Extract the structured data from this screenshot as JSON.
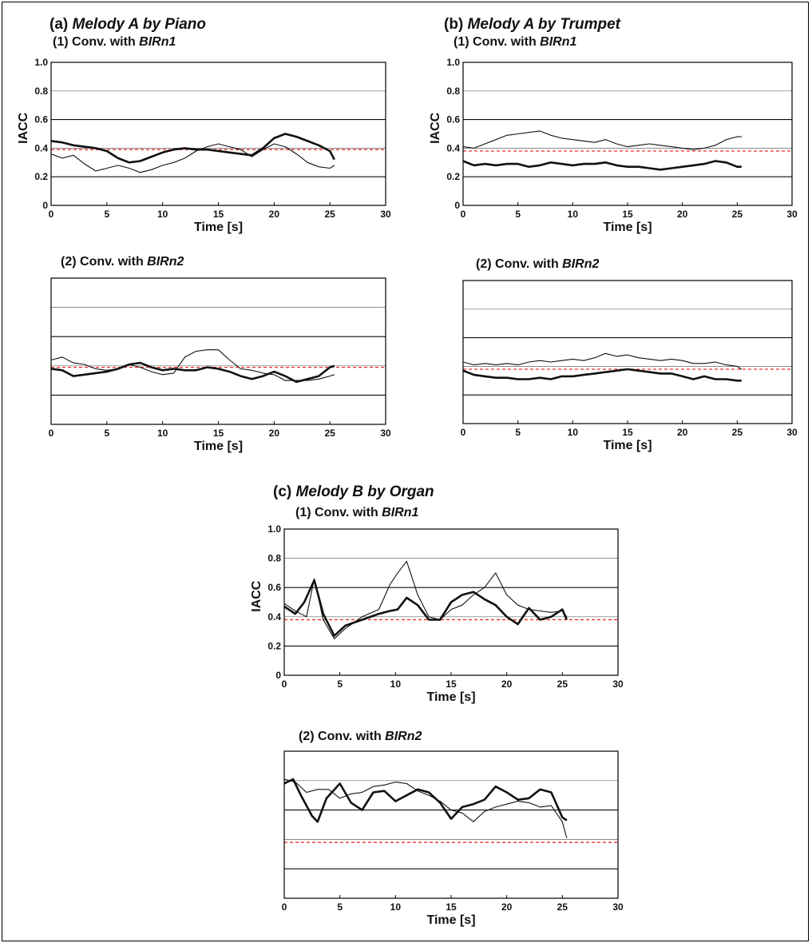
{
  "groups": [
    {
      "label": "(a)",
      "title": "Melody A by Piano"
    },
    {
      "label": "(b)",
      "title": "Melody A by Trumpet"
    },
    {
      "label": "(c)",
      "title": "Melody B by Organ"
    }
  ],
  "conv_prefix": "Conv. with",
  "colors": {
    "axes": "#000000",
    "grid": "#000000",
    "reference": "#e8302a",
    "series": "#111111"
  },
  "chart_data": [
    {
      "id": "a1",
      "group": "(a)",
      "panel_label": "(1)",
      "conv_label": "BIRn1",
      "type": "line",
      "xlabel": "Time [s]",
      "ylabel": "IACC",
      "xlim": [
        0,
        30
      ],
      "ylim": [
        0,
        1.0
      ],
      "xticks": [
        0,
        5,
        10,
        15,
        20,
        25,
        30
      ],
      "yticks": [
        0,
        0.2,
        0.4,
        0.6,
        0.8,
        1.0
      ],
      "show_x_ticklabels": true,
      "show_y_ticklabels": true,
      "grid": true,
      "reference_line": 0.39,
      "series": [
        {
          "style": "thick",
          "x": [
            0,
            1,
            2,
            3,
            4,
            5,
            6,
            7,
            8,
            9,
            10,
            11,
            12,
            13,
            14,
            15,
            16,
            17,
            18,
            19,
            20,
            21,
            22,
            23,
            24,
            25,
            25.4
          ],
          "y": [
            0.45,
            0.44,
            0.42,
            0.41,
            0.4,
            0.38,
            0.33,
            0.3,
            0.31,
            0.34,
            0.37,
            0.39,
            0.4,
            0.39,
            0.39,
            0.38,
            0.37,
            0.36,
            0.35,
            0.4,
            0.47,
            0.5,
            0.48,
            0.45,
            0.42,
            0.38,
            0.32
          ]
        },
        {
          "style": "thin",
          "x": [
            0,
            1,
            2,
            3,
            4,
            5,
            6,
            7,
            8,
            9,
            10,
            11,
            12,
            13,
            14,
            15,
            16,
            17,
            18,
            19,
            20,
            21,
            22,
            23,
            24,
            25,
            25.4
          ],
          "y": [
            0.36,
            0.33,
            0.35,
            0.29,
            0.24,
            0.26,
            0.28,
            0.26,
            0.23,
            0.25,
            0.28,
            0.3,
            0.33,
            0.38,
            0.41,
            0.43,
            0.41,
            0.39,
            0.34,
            0.39,
            0.43,
            0.41,
            0.36,
            0.3,
            0.27,
            0.26,
            0.28
          ]
        }
      ]
    },
    {
      "id": "b1",
      "group": "(b)",
      "panel_label": "(1)",
      "conv_label": "BIRn1",
      "type": "line",
      "xlabel": "Time [s]",
      "ylabel": "IACC",
      "xlim": [
        0,
        30
      ],
      "ylim": [
        0,
        1.0
      ],
      "xticks": [
        0,
        5,
        10,
        15,
        20,
        25,
        30
      ],
      "yticks": [
        0,
        0.2,
        0.4,
        0.6,
        0.8,
        1.0
      ],
      "show_x_ticklabels": true,
      "show_y_ticklabels": true,
      "grid": true,
      "reference_line": 0.38,
      "series": [
        {
          "style": "thin",
          "x": [
            0,
            1,
            2,
            3,
            4,
            5,
            6,
            7,
            8,
            9,
            10,
            11,
            12,
            13,
            14,
            15,
            16,
            17,
            18,
            19,
            20,
            21,
            22,
            23,
            24,
            25,
            25.4
          ],
          "y": [
            0.41,
            0.4,
            0.43,
            0.46,
            0.49,
            0.5,
            0.51,
            0.52,
            0.49,
            0.47,
            0.46,
            0.45,
            0.44,
            0.46,
            0.43,
            0.41,
            0.42,
            0.43,
            0.42,
            0.41,
            0.4,
            0.39,
            0.4,
            0.42,
            0.46,
            0.48,
            0.48
          ]
        },
        {
          "style": "thick",
          "x": [
            0,
            1,
            2,
            3,
            4,
            5,
            6,
            7,
            8,
            9,
            10,
            11,
            12,
            13,
            14,
            15,
            16,
            17,
            18,
            19,
            20,
            21,
            22,
            23,
            24,
            25,
            25.4
          ],
          "y": [
            0.31,
            0.28,
            0.29,
            0.28,
            0.29,
            0.29,
            0.27,
            0.28,
            0.3,
            0.29,
            0.28,
            0.29,
            0.29,
            0.3,
            0.28,
            0.27,
            0.27,
            0.26,
            0.25,
            0.26,
            0.27,
            0.28,
            0.29,
            0.31,
            0.3,
            0.27,
            0.27
          ]
        }
      ]
    },
    {
      "id": "a2",
      "group": "(a)",
      "panel_label": "(2)",
      "conv_label": "BIRn2",
      "type": "line",
      "xlabel": "Time [s]",
      "ylabel": "",
      "xlim": [
        0,
        30
      ],
      "ylim": [
        0,
        1.0
      ],
      "xticks": [
        0,
        5,
        10,
        15,
        20,
        25,
        30
      ],
      "yticks": [],
      "show_x_ticklabels": true,
      "show_y_ticklabels": false,
      "grid": true,
      "reference_line": 0.39,
      "series": [
        {
          "style": "thin",
          "x": [
            0,
            1,
            2,
            3,
            4,
            5,
            6,
            7,
            8,
            9,
            10,
            11,
            12,
            13,
            14,
            15,
            16,
            17,
            18,
            19,
            20,
            21,
            22,
            23,
            24,
            25,
            25.4
          ],
          "y": [
            0.44,
            0.46,
            0.42,
            0.41,
            0.38,
            0.37,
            0.38,
            0.41,
            0.39,
            0.36,
            0.34,
            0.35,
            0.46,
            0.5,
            0.51,
            0.51,
            0.44,
            0.38,
            0.37,
            0.35,
            0.34,
            0.3,
            0.3,
            0.3,
            0.31,
            0.33,
            0.34
          ]
        },
        {
          "style": "thick",
          "x": [
            0,
            1,
            2,
            3,
            4,
            5,
            6,
            7,
            8,
            9,
            10,
            11,
            12,
            13,
            14,
            15,
            16,
            17,
            18,
            19,
            20,
            21,
            22,
            23,
            24,
            25,
            25.4
          ],
          "y": [
            0.38,
            0.37,
            0.33,
            0.34,
            0.35,
            0.36,
            0.38,
            0.41,
            0.42,
            0.39,
            0.37,
            0.38,
            0.37,
            0.37,
            0.39,
            0.38,
            0.36,
            0.33,
            0.31,
            0.33,
            0.36,
            0.33,
            0.29,
            0.31,
            0.33,
            0.39,
            0.4
          ]
        }
      ]
    },
    {
      "id": "b2",
      "group": "(b)",
      "panel_label": "(2)",
      "conv_label": "BIRn2",
      "type": "line",
      "xlabel": "Time [s]",
      "ylabel": "",
      "xlim": [
        0,
        30
      ],
      "ylim": [
        0,
        1.0
      ],
      "xticks": [
        0,
        5,
        10,
        15,
        20,
        25,
        30
      ],
      "yticks": [],
      "show_x_ticklabels": true,
      "show_y_ticklabels": false,
      "grid": true,
      "reference_line": 0.38,
      "series": [
        {
          "style": "thin",
          "x": [
            0,
            1,
            2,
            3,
            4,
            5,
            6,
            7,
            8,
            9,
            10,
            11,
            12,
            13,
            14,
            15,
            16,
            17,
            18,
            19,
            20,
            21,
            22,
            23,
            24,
            25,
            25.4
          ],
          "y": [
            0.43,
            0.41,
            0.42,
            0.41,
            0.42,
            0.41,
            0.43,
            0.44,
            0.43,
            0.44,
            0.45,
            0.44,
            0.46,
            0.49,
            0.47,
            0.48,
            0.46,
            0.45,
            0.44,
            0.45,
            0.44,
            0.42,
            0.42,
            0.43,
            0.41,
            0.4,
            0.38
          ]
        },
        {
          "style": "thick",
          "x": [
            0,
            1,
            2,
            3,
            4,
            5,
            6,
            7,
            8,
            9,
            10,
            11,
            12,
            13,
            14,
            15,
            16,
            17,
            18,
            19,
            20,
            21,
            22,
            23,
            24,
            25,
            25.4
          ],
          "y": [
            0.37,
            0.34,
            0.33,
            0.32,
            0.32,
            0.31,
            0.31,
            0.32,
            0.31,
            0.33,
            0.33,
            0.34,
            0.35,
            0.36,
            0.37,
            0.38,
            0.37,
            0.36,
            0.35,
            0.35,
            0.33,
            0.31,
            0.33,
            0.31,
            0.31,
            0.3,
            0.3
          ]
        }
      ]
    },
    {
      "id": "c1",
      "group": "(c)",
      "panel_label": "(1)",
      "conv_label": "BIRn1",
      "type": "line",
      "xlabel": "Time [s]",
      "ylabel": "IACC",
      "xlim": [
        0,
        30
      ],
      "ylim": [
        0,
        1.0
      ],
      "xticks": [
        0,
        5,
        10,
        15,
        20,
        25,
        30
      ],
      "yticks": [
        0,
        0.2,
        0.4,
        0.6,
        0.8,
        1.0
      ],
      "show_x_ticklabels": true,
      "show_y_ticklabels": true,
      "grid": true,
      "reference_line": 0.38,
      "series": [
        {
          "style": "thin",
          "x": [
            0,
            1,
            2,
            2.7,
            3.5,
            4.5,
            5.5,
            7,
            8.5,
            9.5,
            10.2,
            11,
            12,
            13,
            14,
            15,
            16,
            17,
            18,
            19,
            20,
            21,
            22,
            23,
            24,
            25,
            25.4
          ],
          "y": [
            0.49,
            0.44,
            0.4,
            0.66,
            0.38,
            0.25,
            0.32,
            0.4,
            0.45,
            0.62,
            0.7,
            0.78,
            0.55,
            0.4,
            0.38,
            0.45,
            0.48,
            0.55,
            0.6,
            0.7,
            0.55,
            0.48,
            0.45,
            0.44,
            0.43,
            0.44,
            0.4
          ]
        },
        {
          "style": "thick",
          "x": [
            0,
            1,
            1.8,
            2.7,
            3.5,
            4.5,
            5.5,
            7,
            8.5,
            9.5,
            10.2,
            11,
            12,
            13,
            14,
            15,
            16,
            17,
            18,
            19,
            20,
            21,
            22,
            23,
            24,
            25,
            25.4
          ],
          "y": [
            0.47,
            0.42,
            0.5,
            0.65,
            0.42,
            0.27,
            0.34,
            0.38,
            0.42,
            0.44,
            0.45,
            0.53,
            0.48,
            0.38,
            0.38,
            0.5,
            0.55,
            0.57,
            0.52,
            0.48,
            0.4,
            0.35,
            0.46,
            0.38,
            0.4,
            0.45,
            0.38
          ]
        }
      ]
    },
    {
      "id": "c2",
      "group": "(c)",
      "panel_label": "(2)",
      "conv_label": "BIRn2",
      "type": "line",
      "xlabel": "Time [s]",
      "ylabel": "",
      "xlim": [
        0,
        30
      ],
      "ylim": [
        0,
        1.0
      ],
      "xticks": [
        0,
        5,
        10,
        15,
        20,
        25,
        30
      ],
      "yticks": [],
      "show_x_ticklabels": true,
      "show_y_ticklabels": false,
      "grid": true,
      "reference_line": 0.38,
      "series": [
        {
          "style": "thick",
          "x": [
            0,
            0.8,
            1.5,
            2.5,
            3,
            3.8,
            5,
            6,
            7,
            8,
            9,
            10,
            11,
            12,
            13,
            14,
            15,
            16,
            17,
            18,
            19,
            20,
            21,
            22,
            23,
            24,
            25,
            25.4
          ],
          "y": [
            0.78,
            0.81,
            0.7,
            0.56,
            0.52,
            0.68,
            0.78,
            0.65,
            0.6,
            0.72,
            0.73,
            0.66,
            0.7,
            0.74,
            0.72,
            0.65,
            0.54,
            0.62,
            0.64,
            0.67,
            0.76,
            0.72,
            0.67,
            0.68,
            0.74,
            0.72,
            0.55,
            0.53
          ]
        },
        {
          "style": "thin",
          "x": [
            0,
            1,
            2,
            3,
            4,
            5,
            6,
            7,
            8,
            9,
            10,
            11,
            12,
            13,
            14,
            15,
            16,
            17,
            18,
            19,
            20,
            21,
            22,
            23,
            24,
            25,
            25.4
          ],
          "y": [
            0.81,
            0.79,
            0.72,
            0.74,
            0.74,
            0.68,
            0.71,
            0.72,
            0.76,
            0.77,
            0.79,
            0.78,
            0.73,
            0.7,
            0.66,
            0.6,
            0.58,
            0.52,
            0.59,
            0.62,
            0.64,
            0.66,
            0.65,
            0.62,
            0.63,
            0.52,
            0.41
          ]
        }
      ]
    }
  ]
}
